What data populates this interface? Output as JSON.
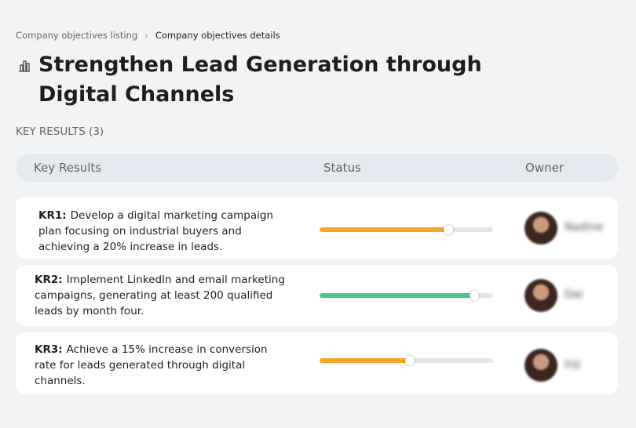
{
  "breadcrumb": {
    "items": [
      "Company objectives listing",
      "Company objectives details"
    ]
  },
  "header": {
    "title": "Strengthen Lead Generation through Digital Channels"
  },
  "section": {
    "title": "KEY RESULTS (3)"
  },
  "table": {
    "columns": [
      "Key Results",
      "Status",
      "Owner"
    ],
    "rows": [
      {
        "label": "KR1:",
        "text": "Develop a digital marketing campaign plan focusing on industrial buyers and achieving a 20% increase in leads.",
        "progress": 74,
        "color": "#f5a52c",
        "owner": "Nadine"
      },
      {
        "label": "KR2:",
        "text": "Implement LinkedIn and email marketing campaigns, generating at least 200 qualified leads by month four.",
        "progress": 89,
        "color": "#4fc38b",
        "owner": "Dai"
      },
      {
        "label": "KR3:",
        "text": "Achieve a 15% increase in conversion rate for leads generated through digital channels.",
        "progress": 52,
        "color": "#f5a52c",
        "owner": "Inji"
      }
    ]
  }
}
